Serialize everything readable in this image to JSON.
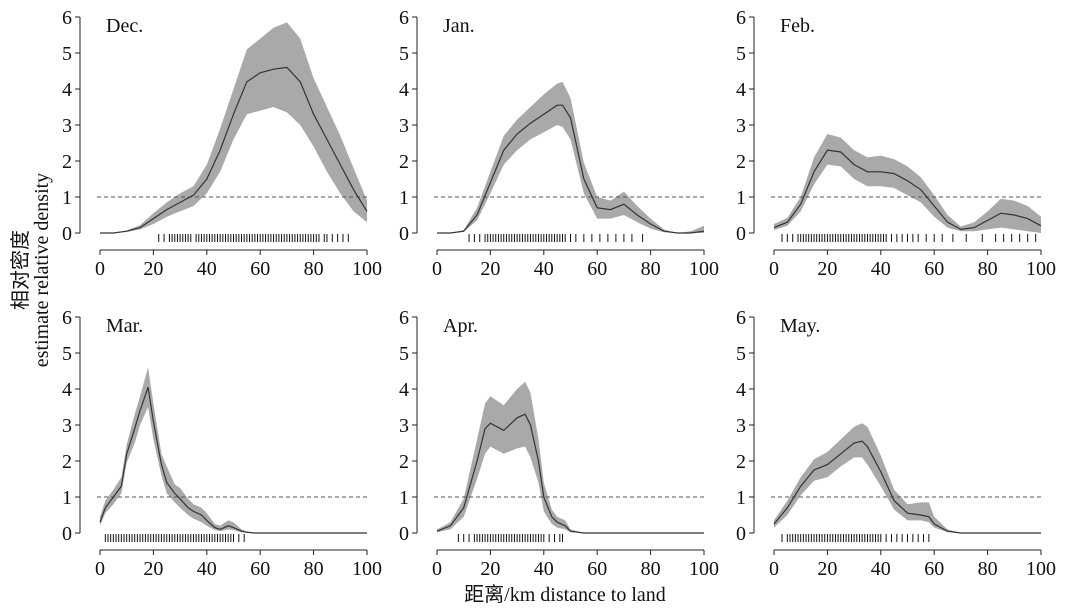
{
  "figure": {
    "xlabel": "距离/km distance to land",
    "ylabel_cn": "相对密度",
    "ylabel_en": "estimate relative density"
  },
  "colors": {
    "band": "#a9a9a9",
    "line": "#333333",
    "reference": "#555555",
    "rug": "#111111"
  },
  "chart_data": [
    {
      "type": "line",
      "panel": "Dec.",
      "xlim": [
        0,
        100
      ],
      "ylim": [
        0,
        6
      ],
      "xticks": [
        0,
        20,
        40,
        60,
        80,
        100
      ],
      "yticks": [
        0,
        1,
        2,
        3,
        4,
        5,
        6
      ],
      "reference_line": 1,
      "x": [
        0,
        5,
        10,
        15,
        20,
        25,
        30,
        35,
        40,
        45,
        50,
        55,
        60,
        65,
        70,
        75,
        80,
        85,
        90,
        95,
        100
      ],
      "mean": [
        0,
        0,
        0.05,
        0.15,
        0.4,
        0.65,
        0.85,
        1.05,
        1.5,
        2.3,
        3.3,
        4.2,
        4.45,
        4.55,
        4.6,
        4.2,
        3.3,
        2.6,
        1.9,
        1.2,
        0.6
      ],
      "lower": [
        0,
        0,
        0.03,
        0.1,
        0.25,
        0.45,
        0.6,
        0.75,
        1.1,
        1.7,
        2.6,
        3.3,
        3.4,
        3.5,
        3.35,
        3.0,
        2.4,
        1.7,
        1.1,
        0.6,
        0.3
      ],
      "upper": [
        0,
        0,
        0.07,
        0.22,
        0.55,
        0.85,
        1.1,
        1.3,
        1.9,
        2.9,
        4.0,
        5.1,
        5.4,
        5.7,
        5.85,
        5.4,
        4.3,
        3.5,
        2.7,
        1.8,
        0.9
      ],
      "rug": [
        22,
        24,
        26,
        27,
        28,
        29,
        30,
        31,
        32,
        33,
        34,
        36,
        37,
        38,
        39,
        40,
        41,
        42,
        43,
        44,
        45,
        46,
        47,
        48,
        49,
        50,
        51,
        52,
        53,
        54,
        55,
        56,
        57,
        58,
        59,
        60,
        61,
        62,
        63,
        64,
        65,
        66,
        67,
        68,
        69,
        70,
        71,
        72,
        73,
        74,
        75,
        76,
        77,
        78,
        79,
        80,
        81,
        82,
        84,
        85,
        87,
        89,
        91,
        93
      ]
    },
    {
      "type": "line",
      "panel": "Jan.",
      "xlim": [
        0,
        100
      ],
      "ylim": [
        0,
        6
      ],
      "xticks": [
        0,
        20,
        40,
        60,
        80,
        100
      ],
      "yticks": [
        0,
        1,
        2,
        3,
        4,
        5,
        6
      ],
      "reference_line": 1,
      "x": [
        0,
        5,
        10,
        15,
        20,
        25,
        30,
        35,
        40,
        45,
        47,
        50,
        55,
        60,
        65,
        70,
        75,
        80,
        85,
        90,
        95,
        100
      ],
      "mean": [
        0,
        0,
        0.05,
        0.5,
        1.4,
        2.3,
        2.75,
        3.05,
        3.3,
        3.55,
        3.55,
        3.2,
        1.5,
        0.7,
        0.65,
        0.8,
        0.5,
        0.25,
        0.05,
        0,
        0,
        0.05
      ],
      "lower": [
        0,
        0,
        0.03,
        0.35,
        1.1,
        1.9,
        2.3,
        2.6,
        2.8,
        3.0,
        2.95,
        2.6,
        1.1,
        0.4,
        0.4,
        0.5,
        0.3,
        0.12,
        0.02,
        0,
        0,
        0
      ],
      "upper": [
        0,
        0,
        0.08,
        0.7,
        1.7,
        2.7,
        3.15,
        3.5,
        3.85,
        4.15,
        4.2,
        3.75,
        1.95,
        1.0,
        0.9,
        1.15,
        0.75,
        0.4,
        0.1,
        0,
        0.05,
        0.2
      ],
      "rug": [
        12,
        14,
        16,
        18,
        19,
        20,
        21,
        22,
        23,
        24,
        25,
        26,
        27,
        28,
        29,
        30,
        31,
        32,
        33,
        34,
        35,
        36,
        37,
        38,
        39,
        40,
        41,
        42,
        43,
        44,
        45,
        46,
        47,
        48,
        50,
        52,
        55,
        58,
        61,
        64,
        67,
        70,
        73,
        77
      ]
    },
    {
      "type": "line",
      "panel": "Feb.",
      "xlim": [
        0,
        100
      ],
      "ylim": [
        0,
        6
      ],
      "xticks": [
        0,
        20,
        40,
        60,
        80,
        100
      ],
      "yticks": [
        0,
        1,
        2,
        3,
        4,
        5,
        6
      ],
      "reference_line": 1,
      "x": [
        0,
        5,
        10,
        15,
        20,
        25,
        30,
        35,
        40,
        45,
        50,
        55,
        60,
        65,
        70,
        75,
        80,
        85,
        90,
        95,
        100
      ],
      "mean": [
        0.15,
        0.3,
        0.8,
        1.7,
        2.3,
        2.25,
        1.9,
        1.7,
        1.7,
        1.65,
        1.45,
        1.2,
        0.75,
        0.3,
        0.1,
        0.15,
        0.35,
        0.55,
        0.5,
        0.4,
        0.2
      ],
      "lower": [
        0.08,
        0.2,
        0.6,
        1.35,
        1.9,
        1.85,
        1.5,
        1.3,
        1.3,
        1.25,
        1.05,
        0.85,
        0.45,
        0.15,
        0.05,
        0.05,
        0.1,
        0.15,
        0.1,
        0.05,
        0
      ],
      "upper": [
        0.25,
        0.42,
        1.0,
        2.1,
        2.75,
        2.65,
        2.3,
        2.1,
        2.15,
        2.05,
        1.85,
        1.55,
        1.05,
        0.5,
        0.18,
        0.3,
        0.6,
        0.95,
        0.9,
        0.75,
        0.45
      ],
      "rug": [
        3,
        5,
        7,
        9,
        10,
        11,
        12,
        13,
        14,
        15,
        16,
        17,
        18,
        19,
        20,
        21,
        22,
        23,
        24,
        25,
        26,
        27,
        28,
        29,
        30,
        31,
        32,
        33,
        34,
        35,
        36,
        37,
        38,
        39,
        40,
        41,
        42,
        44,
        46,
        48,
        50,
        52,
        54,
        57,
        60,
        63,
        67,
        72,
        78,
        83,
        86,
        89,
        92,
        95,
        98
      ]
    },
    {
      "type": "line",
      "panel": "Mar.",
      "xlim": [
        0,
        100
      ],
      "ylim": [
        0,
        6
      ],
      "xticks": [
        0,
        20,
        40,
        60,
        80,
        100
      ],
      "yticks": [
        0,
        1,
        2,
        3,
        4,
        5,
        6
      ],
      "reference_line": 1,
      "x": [
        0,
        2,
        5,
        8,
        10,
        13,
        15,
        18,
        20,
        23,
        25,
        28,
        30,
        33,
        35,
        38,
        40,
        43,
        45,
        48,
        50,
        53,
        55,
        58,
        60,
        70,
        80,
        90,
        100
      ],
      "mean": [
        0.3,
        0.7,
        1.0,
        1.3,
        2.2,
        2.9,
        3.4,
        4.05,
        3.1,
        1.9,
        1.4,
        1.1,
        0.95,
        0.7,
        0.6,
        0.5,
        0.35,
        0.15,
        0.1,
        0.2,
        0.15,
        0.05,
        0.02,
        0,
        0,
        0,
        0,
        0,
        0
      ],
      "lower": [
        0.2,
        0.55,
        0.8,
        1.1,
        1.95,
        2.5,
        3.0,
        3.5,
        2.6,
        1.6,
        1.1,
        0.85,
        0.7,
        0.5,
        0.4,
        0.3,
        0.2,
        0.08,
        0.05,
        0.1,
        0.08,
        0.02,
        0.01,
        0,
        0,
        0,
        0,
        0,
        0
      ],
      "upper": [
        0.45,
        0.9,
        1.2,
        1.55,
        2.45,
        3.3,
        3.8,
        4.6,
        3.6,
        2.2,
        1.85,
        1.35,
        1.25,
        0.95,
        0.8,
        0.7,
        0.55,
        0.25,
        0.2,
        0.35,
        0.3,
        0.1,
        0.05,
        0,
        0,
        0,
        0,
        0,
        0
      ],
      "rug": [
        2,
        3,
        4,
        5,
        6,
        7,
        8,
        9,
        10,
        11,
        12,
        13,
        14,
        15,
        16,
        17,
        18,
        19,
        20,
        21,
        22,
        23,
        24,
        25,
        26,
        27,
        28,
        29,
        30,
        31,
        32,
        33,
        34,
        35,
        36,
        37,
        38,
        39,
        40,
        41,
        42,
        43,
        44,
        45,
        46,
        47,
        48,
        49,
        50,
        52,
        54
      ]
    },
    {
      "type": "line",
      "panel": "Apr.",
      "xlim": [
        0,
        100
      ],
      "ylim": [
        0,
        6
      ],
      "xticks": [
        0,
        20,
        40,
        60,
        80,
        100
      ],
      "yticks": [
        0,
        1,
        2,
        3,
        4,
        5,
        6
      ],
      "reference_line": 1,
      "x": [
        0,
        5,
        10,
        15,
        18,
        20,
        25,
        30,
        33,
        35,
        38,
        40,
        43,
        45,
        48,
        50,
        55,
        60,
        80,
        100
      ],
      "mean": [
        0.05,
        0.2,
        0.7,
        2.0,
        2.9,
        3.05,
        2.85,
        3.2,
        3.3,
        3.0,
        2.0,
        1.0,
        0.45,
        0.3,
        0.2,
        0.05,
        0,
        0,
        0,
        0
      ],
      "lower": [
        0.02,
        0.1,
        0.45,
        1.5,
        2.2,
        2.4,
        2.2,
        2.35,
        2.4,
        2.1,
        1.4,
        0.6,
        0.25,
        0.15,
        0.1,
        0.02,
        0,
        0,
        0,
        0
      ],
      "upper": [
        0.1,
        0.3,
        0.95,
        2.6,
        3.6,
        3.8,
        3.55,
        4.0,
        4.2,
        3.9,
        2.6,
        1.4,
        0.65,
        0.45,
        0.35,
        0.1,
        0,
        0,
        0,
        0
      ],
      "rug": [
        8,
        10,
        12,
        14,
        15,
        16,
        17,
        18,
        19,
        20,
        21,
        22,
        23,
        24,
        25,
        26,
        27,
        28,
        29,
        30,
        31,
        32,
        33,
        34,
        35,
        36,
        37,
        38,
        39,
        40,
        42,
        44,
        46,
        47
      ]
    },
    {
      "type": "line",
      "panel": "May.",
      "xlim": [
        0,
        100
      ],
      "ylim": [
        0,
        6
      ],
      "xticks": [
        0,
        20,
        40,
        60,
        80,
        100
      ],
      "yticks": [
        0,
        1,
        2,
        3,
        4,
        5,
        6
      ],
      "reference_line": 1,
      "x": [
        0,
        5,
        10,
        15,
        20,
        25,
        30,
        33,
        35,
        40,
        45,
        50,
        55,
        58,
        60,
        65,
        70,
        80,
        100
      ],
      "mean": [
        0.25,
        0.7,
        1.3,
        1.75,
        1.9,
        2.2,
        2.5,
        2.55,
        2.4,
        1.7,
        0.9,
        0.55,
        0.5,
        0.45,
        0.25,
        0.05,
        0,
        0,
        0
      ],
      "lower": [
        0.15,
        0.5,
        1.05,
        1.45,
        1.55,
        1.85,
        2.1,
        2.1,
        1.9,
        1.3,
        0.65,
        0.35,
        0.35,
        0.3,
        0.15,
        0.02,
        0,
        0,
        0
      ],
      "upper": [
        0.35,
        0.9,
        1.55,
        2.05,
        2.25,
        2.6,
        2.95,
        3.05,
        2.95,
        2.15,
        1.2,
        0.8,
        0.85,
        0.85,
        0.45,
        0.1,
        0,
        0,
        0
      ],
      "rug": [
        3,
        5,
        6,
        7,
        8,
        9,
        10,
        11,
        12,
        13,
        14,
        15,
        16,
        17,
        18,
        19,
        20,
        21,
        22,
        23,
        24,
        25,
        26,
        27,
        28,
        29,
        30,
        31,
        32,
        33,
        34,
        35,
        36,
        37,
        38,
        39,
        40,
        42,
        44,
        46,
        48,
        50,
        52,
        54,
        56,
        58
      ]
    }
  ]
}
